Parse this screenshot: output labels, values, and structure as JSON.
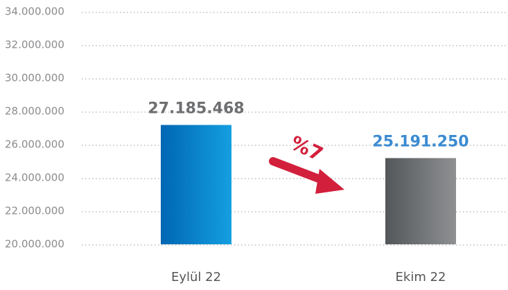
{
  "chart_data": {
    "type": "bar",
    "categories": [
      "Eylül 22",
      "Ekim 22"
    ],
    "values": [
      27185468,
      25191250
    ],
    "value_labels": [
      "27.185.468",
      "25.191.250"
    ],
    "colors": [
      [
        "#0066b3",
        "#149fe0"
      ],
      [
        "#54575a",
        "#8e9092"
      ]
    ],
    "value_label_colors": [
      "#6d6e70",
      "#3b8bd1"
    ],
    "ylim": [
      20000000,
      34000000
    ],
    "yticks": [
      {
        "value": 20000000,
        "label": "20.000.000"
      },
      {
        "value": 22000000,
        "label": "22.000.000"
      },
      {
        "value": 24000000,
        "label": "24.000.000"
      },
      {
        "value": 26000000,
        "label": "26.000.000"
      },
      {
        "value": 28000000,
        "label": "28.000.000"
      },
      {
        "value": 30000000,
        "label": "30.000.000"
      },
      {
        "value": 32000000,
        "label": "32.000.000"
      },
      {
        "value": 34000000,
        "label": "34.000.000"
      }
    ],
    "grid": true,
    "annotation": {
      "text": "%7",
      "color": "#d2203c"
    }
  }
}
